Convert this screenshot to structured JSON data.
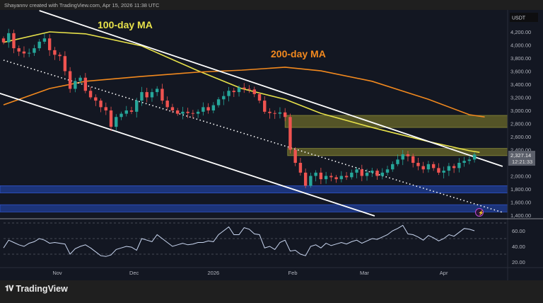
{
  "header": {
    "attribution": "Shayannv created with TradingView.com, Apr 15, 2026 11:38 UTC"
  },
  "footer": {
    "brand": "TradingView",
    "logo_text": "TV"
  },
  "colors": {
    "up": "#26a69a",
    "down": "#ef5350",
    "ma100": "#e8e24a",
    "ma200": "#f2891e",
    "supply_zone": "#6b6a2a",
    "demand_zone": "#1e3a8a",
    "trendline": "#ffffff",
    "rsi": "#c9d6f0"
  },
  "chart_data": [
    {
      "type": "candlestick",
      "currency_label": "USDT",
      "candle_interval_days": 2,
      "first_candle_date": "2025-10-11",
      "closes": [
        4040,
        4180,
        3950,
        3900,
        3870,
        3880,
        3950,
        4050,
        4100,
        3920,
        3850,
        3830,
        3600,
        3330,
        3450,
        3500,
        3300,
        3200,
        3150,
        3050,
        3000,
        2750,
        2900,
        2950,
        3000,
        2980,
        3150,
        3280,
        3200,
        3280,
        3330,
        3150,
        3050,
        3000,
        2950,
        2980,
        2960,
        2950,
        2980,
        3050,
        3000,
        3080,
        3170,
        3220,
        3300,
        3280,
        3350,
        3330,
        3320,
        3250,
        3150,
        2980,
        2960,
        2950,
        2970,
        2900,
        2400,
        2200,
        2050,
        1850,
        2000,
        2050,
        1950,
        2000,
        1980,
        1950,
        2000,
        1980,
        2050,
        2100,
        2000,
        2050,
        2080,
        2000,
        2050,
        2100,
        2180,
        2250,
        2330,
        2300,
        2200,
        2150,
        2100,
        2180,
        2120,
        2050,
        2080,
        2150,
        2120,
        2200,
        2230,
        2250,
        2327
      ],
      "ylim": [
        1350,
        4350
      ],
      "y_ticks": [
        "4,200.00",
        "4,000.00",
        "3,800.00",
        "3,600.00",
        "3,400.00",
        "3,200.00",
        "3,000.00",
        "2,800.00",
        "2,600.00",
        "2,400.00",
        "2,000.00",
        "1,800.00",
        "1,600.00",
        "1,400.00"
      ],
      "y_tick_values": [
        4200,
        4000,
        3800,
        3600,
        3400,
        3200,
        3000,
        2800,
        2600,
        2400,
        2000,
        1800,
        1600,
        1400
      ],
      "x_ticks": [
        {
          "label": "Nov",
          "date": "2025-11-01"
        },
        {
          "label": "Dec",
          "date": "2025-12-01"
        },
        {
          "label": "2026",
          "date": "2026-01-01"
        },
        {
          "label": "Feb",
          "date": "2026-02-01"
        },
        {
          "label": "Mar",
          "date": "2026-03-01"
        },
        {
          "label": "Apr",
          "date": "2026-04-01"
        }
      ],
      "last_price": {
        "value": "2,327.14",
        "countdown": "12:21:33"
      },
      "moving_averages": [
        {
          "name": "100-day MA",
          "points": [
            [
              "2025-10-11",
              4040
            ],
            [
              "2025-10-29",
              4200
            ],
            [
              "2025-11-12",
              4170
            ],
            [
              "2025-12-04",
              3985
            ],
            [
              "2025-12-26",
              3605
            ],
            [
              "2026-01-12",
              3335
            ],
            [
              "2026-01-29",
              3170
            ],
            [
              "2026-02-12",
              2955
            ],
            [
              "2026-03-04",
              2740
            ],
            [
              "2026-03-26",
              2525
            ],
            [
              "2026-04-11",
              2385
            ],
            [
              "2026-04-15",
              2360
            ]
          ]
        },
        {
          "name": "200-day MA",
          "points": [
            [
              "2025-10-11",
              3085
            ],
            [
              "2025-10-29",
              3335
            ],
            [
              "2025-11-12",
              3445
            ],
            [
              "2025-12-04",
              3520
            ],
            [
              "2025-12-26",
              3585
            ],
            [
              "2026-01-12",
              3615
            ],
            [
              "2026-01-29",
              3660
            ],
            [
              "2026-02-12",
              3605
            ],
            [
              "2026-03-04",
              3445
            ],
            [
              "2026-03-26",
              3170
            ],
            [
              "2026-04-11",
              2935
            ],
            [
              "2026-04-17",
              2900
            ]
          ]
        }
      ],
      "trendlines": [
        {
          "style": "solid",
          "from": [
            "2025-10-25",
            4524
          ],
          "to": [
            "2026-04-24",
            2146
          ]
        },
        {
          "style": "solid",
          "from": [
            "2025-10-08",
            3281
          ],
          "to": [
            "2026-03-05",
            1389
          ]
        },
        {
          "style": "dotted",
          "from": [
            "2025-10-11",
            3768
          ],
          "to": [
            "2026-04-24",
            1443
          ]
        }
      ],
      "zones": [
        {
          "kind": "supply",
          "from_date": "2026-01-29",
          "low": 2740,
          "high": 2924
        },
        {
          "kind": "supply",
          "from_date": "2026-01-30",
          "low": 2310,
          "high": 2420
        },
        {
          "kind": "demand",
          "from_date": "2025-10-01",
          "low": 1740,
          "high": 1850
        },
        {
          "kind": "demand",
          "from_date": "2025-10-01",
          "low": 1450,
          "high": 1560
        }
      ]
    },
    {
      "type": "line",
      "indicator": "RSI",
      "values": [
        38,
        48,
        45,
        42,
        40,
        44,
        46,
        50,
        48,
        44,
        45,
        44,
        43,
        30,
        37,
        40,
        42,
        38,
        33,
        28,
        27,
        29,
        36,
        38,
        40,
        39,
        35,
        50,
        48,
        46,
        55,
        50,
        45,
        40,
        42,
        44,
        42,
        43,
        45,
        45,
        47,
        46,
        55,
        60,
        65,
        55,
        55,
        64,
        62,
        56,
        55,
        38,
        40,
        36,
        45,
        48,
        34,
        35,
        30,
        28,
        40,
        42,
        38,
        44,
        41,
        43,
        45,
        43,
        46,
        48,
        44,
        47,
        50,
        49,
        52,
        55,
        60,
        63,
        67,
        56,
        55,
        52,
        48,
        54,
        51,
        47,
        50,
        55,
        53,
        58,
        63,
        62,
        60
      ],
      "ylim": [
        10,
        75
      ],
      "levels": [
        70,
        50,
        30
      ],
      "y_ticks": [
        "60.00",
        "40.00",
        "20.00"
      ],
      "y_tick_values": [
        60,
        40,
        20
      ]
    }
  ]
}
